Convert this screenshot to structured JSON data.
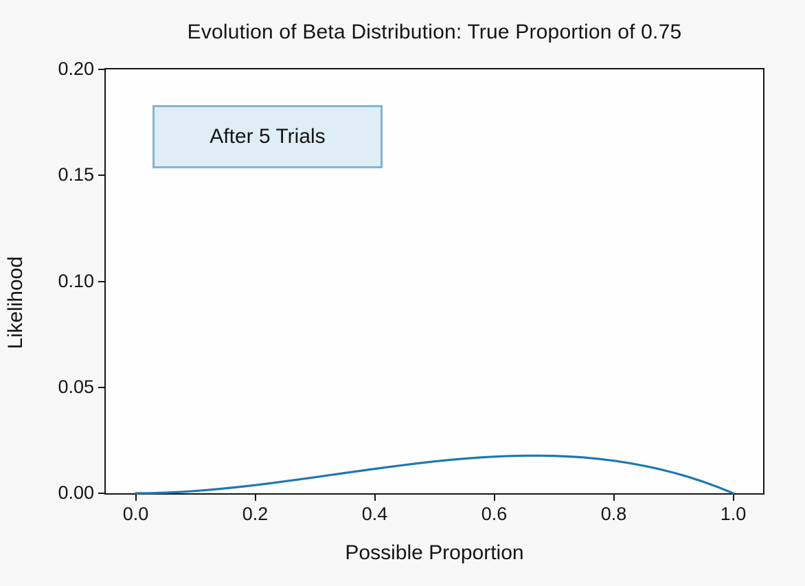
{
  "title": "Evolution of Beta Distribution: True Proportion of 0.75",
  "colors": {
    "line": "#1f77b4",
    "annotation_fill": "#deedf6",
    "annotation_border": "#85b3d3",
    "figure_background": "#f8f8f8",
    "axes_background": "#fefefe",
    "text": "#151515"
  },
  "chart_data": {
    "type": "line",
    "title": "Evolution of Beta Distribution: True Proportion of 0.75",
    "xlabel": "Possible Proportion",
    "ylabel": "Likelihood",
    "annotation": "After 5 Trials",
    "true_proportion": 0.75,
    "trials": 5,
    "grid": false,
    "legend": null,
    "xlim": [
      -0.05,
      1.05
    ],
    "ylim": [
      0,
      0.2
    ],
    "x_ticks": {
      "values": [
        0.0,
        0.2,
        0.4,
        0.6,
        0.8,
        1.0
      ],
      "labels": [
        "0.0",
        "0.2",
        "0.4",
        "0.6",
        "0.8",
        "1.0"
      ]
    },
    "y_ticks": {
      "values": [
        0.0,
        0.05,
        0.1,
        0.15,
        0.2
      ],
      "labels": [
        "0.00",
        "0.05",
        "0.10",
        "0.15",
        "0.20"
      ]
    },
    "series": [
      {
        "name": "likelihood-after-5-trials",
        "color": "#1f77b4",
        "peak_x": 0.667,
        "peak_y": 0.0178,
        "x": [
          0.0,
          0.025,
          0.05,
          0.075,
          0.1,
          0.125,
          0.15,
          0.175,
          0.2,
          0.225,
          0.25,
          0.275,
          0.3,
          0.325,
          0.35,
          0.375,
          0.4,
          0.425,
          0.45,
          0.475,
          0.5,
          0.525,
          0.55,
          0.575,
          0.6,
          0.625,
          0.65,
          0.675,
          0.7,
          0.725,
          0.75,
          0.775,
          0.8,
          0.825,
          0.85,
          0.875,
          0.9,
          0.925,
          0.95,
          0.975,
          1.0
        ],
        "y": [
          0.0,
          7.3e-05,
          0.000285,
          0.000624,
          0.00108,
          0.001641,
          0.002295,
          0.003032,
          0.00384,
          0.004708,
          0.005625,
          0.006579,
          0.00756,
          0.008556,
          0.009555,
          0.010547,
          0.01152,
          0.012463,
          0.013365,
          0.014214,
          0.015,
          0.015711,
          0.016335,
          0.016862,
          0.01728,
          0.017578,
          0.017745,
          0.017769,
          0.01764,
          0.017346,
          0.016875,
          0.016217,
          0.01536,
          0.014293,
          0.013005,
          0.011484,
          0.00972,
          0.007701,
          0.005415,
          0.002852,
          0.0
        ]
      }
    ]
  }
}
